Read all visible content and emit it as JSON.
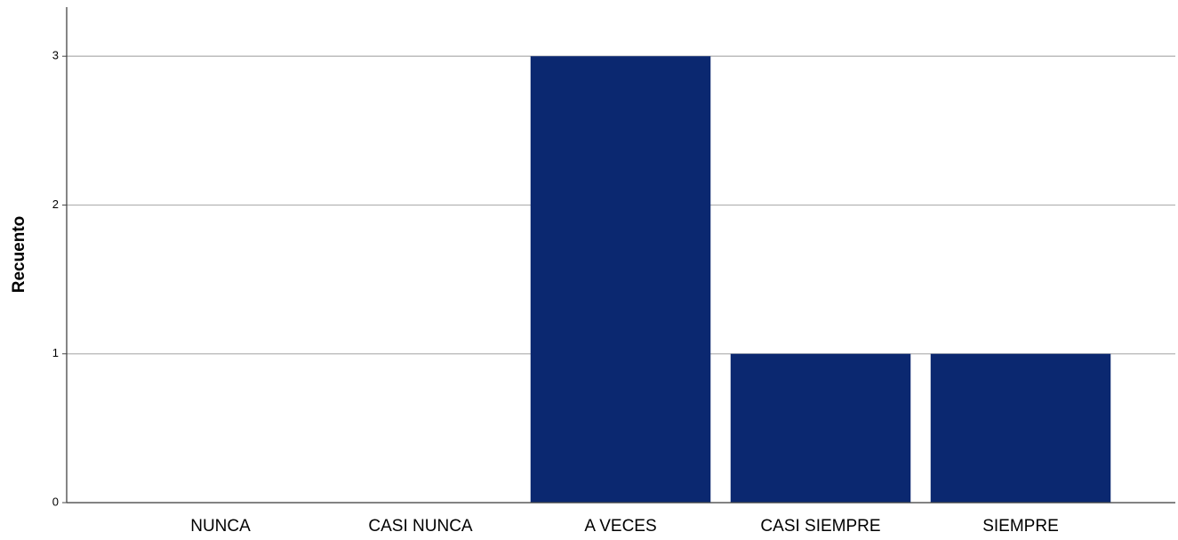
{
  "chart_data": {
    "type": "bar",
    "y_label": "Recuento",
    "categories": [
      "NUNCA",
      "CASI NUNCA",
      "A VECES",
      "CASI SIEMPRE",
      "SIEMPRE"
    ],
    "values": [
      0,
      0,
      3,
      1,
      1
    ],
    "color": "#0b2870",
    "ylim": [
      0,
      3.33
    ],
    "yticks": [
      0,
      1,
      2,
      3
    ],
    "grid": true
  }
}
